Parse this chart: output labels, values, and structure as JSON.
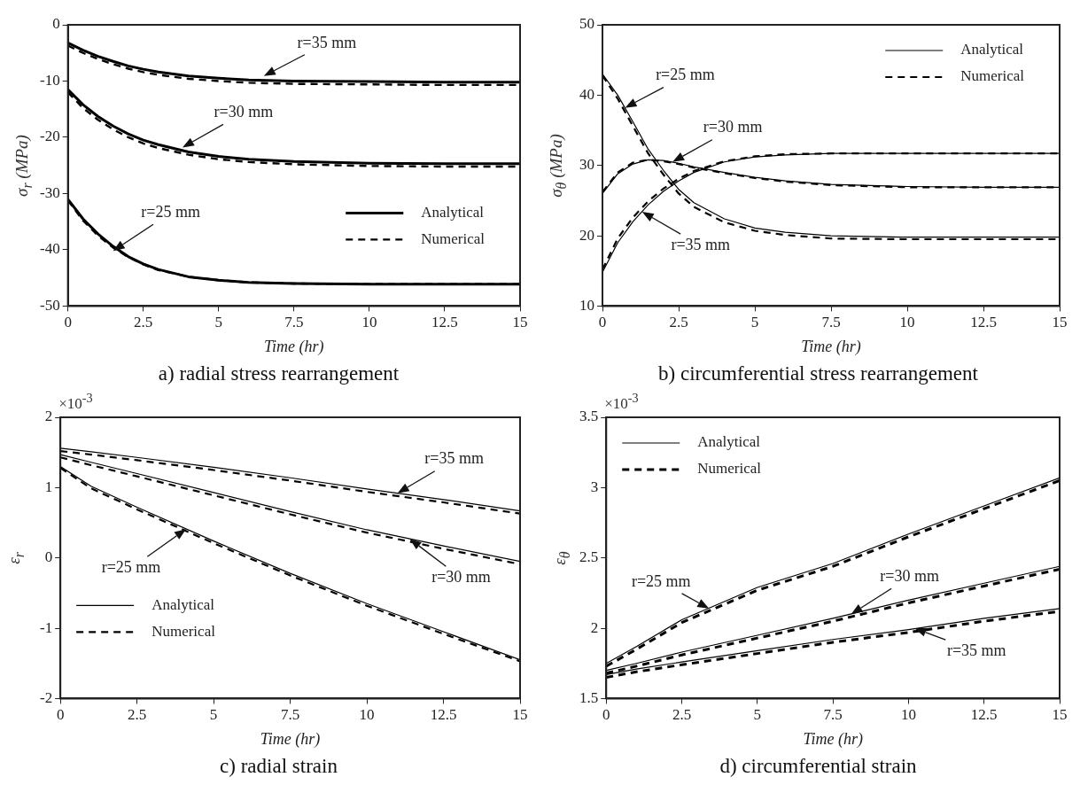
{
  "chart_data": [
    {
      "type": "line",
      "title": "a) radial stress rearrangement",
      "xlabel": "Time (hr)",
      "ylabel": "σ$_{r}$ (MPa)",
      "x": [
        0,
        0.5,
        1,
        1.5,
        2,
        2.5,
        3,
        4,
        5,
        6,
        7.5,
        10,
        12.5,
        15
      ],
      "xlim": [
        0,
        15
      ],
      "xticks": [
        0,
        2.5,
        5,
        7.5,
        10,
        12.5,
        15
      ],
      "ylim": [
        -50,
        0
      ],
      "yticks": [
        -50,
        -40,
        -30,
        -20,
        -10,
        0
      ],
      "grid": false,
      "marker": "none",
      "legend": "bottom right",
      "series": [
        {
          "name": "Analytical",
          "color": "#000000",
          "line_style": "solid",
          "values": [
            -31,
            -34.5,
            -37.2,
            -39.4,
            -41.2,
            -42.5,
            -43.5,
            -44.8,
            -45.4,
            -45.8,
            -46.0,
            -46.1,
            -46.1,
            -46.1
          ]
        },
        {
          "name": "Numerical",
          "color": "#000000",
          "line_style": "dashed",
          "values": [
            -31.2,
            -34.8,
            -37.5,
            -39.6,
            -41.3,
            -42.6,
            -43.6,
            -44.8,
            -45.4,
            -45.8,
            -46.0,
            -46.1,
            -46.1,
            -46.1
          ]
        },
        {
          "color": "#000000",
          "line_style": "solid",
          "values": [
            -11.5,
            -14.2,
            -16.3,
            -18.0,
            -19.4,
            -20.5,
            -21.3,
            -22.6,
            -23.4,
            -23.9,
            -24.3,
            -24.6,
            -24.7,
            -24.7
          ]
        },
        {
          "color": "#000000",
          "line_style": "dashed",
          "values": [
            -12.0,
            -14.8,
            -16.9,
            -18.6,
            -20.0,
            -21.1,
            -21.9,
            -23.1,
            -23.9,
            -24.4,
            -24.8,
            -25.1,
            -25.2,
            -25.2
          ]
        },
        {
          "color": "#000000",
          "line_style": "solid",
          "values": [
            -3.2,
            -4.5,
            -5.6,
            -6.5,
            -7.3,
            -7.9,
            -8.4,
            -9.1,
            -9.5,
            -9.8,
            -10.0,
            -10.1,
            -10.2,
            -10.2
          ]
        },
        {
          "color": "#000000",
          "line_style": "dashed",
          "values": [
            -3.7,
            -5.0,
            -6.1,
            -7.0,
            -7.8,
            -8.4,
            -8.9,
            -9.6,
            -10.0,
            -10.3,
            -10.5,
            -10.6,
            -10.7,
            -10.7
          ]
        }
      ],
      "annotations": [
        {
          "text": "r=35 mm",
          "x": 6.5,
          "y": -9.1
        },
        {
          "text": "r=30 mm",
          "x": 3.8,
          "y": -21.8
        },
        {
          "text": "r=25 mm",
          "x": 1.5,
          "y": -40.2
        }
      ]
    },
    {
      "type": "line",
      "title": "b) circumferential stress rearrangement",
      "xlabel": "Time (hr)",
      "ylabel": "σ$_{θ}$ (MPa)",
      "x": [
        0,
        0.5,
        1,
        1.5,
        2,
        2.5,
        3,
        4,
        5,
        6,
        7.5,
        10,
        12.5,
        15
      ],
      "xlim": [
        0,
        15
      ],
      "xticks": [
        0,
        2.5,
        5,
        7.5,
        10,
        12.5,
        15
      ],
      "ylim": [
        10,
        50
      ],
      "yticks": [
        10,
        20,
        30,
        40,
        50
      ],
      "grid": false,
      "marker": "none",
      "legend": "top right",
      "series": [
        {
          "name": "Analytical",
          "color": "#000000",
          "line_style": "solid",
          "values": [
            43,
            40.0,
            36.2,
            32.3,
            29.3,
            26.6,
            24.7,
            22.4,
            21.1,
            20.5,
            20.0,
            19.8,
            19.8,
            19.8
          ]
        },
        {
          "name": "Numerical",
          "color": "#000000",
          "line_style": "dashed",
          "values": [
            42.8,
            39.5,
            35.6,
            31.7,
            28.7,
            26.0,
            24.1,
            21.9,
            20.7,
            20.1,
            19.6,
            19.5,
            19.5,
            19.5
          ]
        },
        {
          "color": "#000000",
          "line_style": "solid",
          "values": [
            26.0,
            28.8,
            30.2,
            30.8,
            30.7,
            30.3,
            29.8,
            29.0,
            28.3,
            27.8,
            27.3,
            27.0,
            26.9,
            26.9
          ]
        },
        {
          "color": "#000000",
          "line_style": "dashed",
          "values": [
            26.2,
            29.0,
            30.4,
            30.8,
            30.6,
            30.2,
            29.7,
            28.9,
            28.2,
            27.7,
            27.2,
            26.9,
            26.9,
            26.9
          ]
        },
        {
          "color": "#000000",
          "line_style": "solid",
          "values": [
            14.8,
            19.0,
            22.0,
            24.4,
            26.3,
            27.8,
            29.0,
            30.5,
            31.2,
            31.5,
            31.7,
            31.7,
            31.7,
            31.7
          ]
        },
        {
          "color": "#000000",
          "line_style": "dashed",
          "values": [
            15.2,
            19.6,
            22.6,
            24.9,
            26.7,
            28.1,
            29.2,
            30.6,
            31.3,
            31.6,
            31.7,
            31.7,
            31.7,
            31.7
          ]
        }
      ],
      "annotations": [
        {
          "text": "r=25 mm",
          "x": 0.74,
          "y": 38.2
        },
        {
          "text": "r=30 mm",
          "x": 2.3,
          "y": 30.5
        },
        {
          "text": "r=35 mm",
          "x": 1.3,
          "y": 23.4
        }
      ]
    },
    {
      "type": "line",
      "title": "c) radial strain",
      "xlabel": "Time (hr)",
      "ylabel": "ε$_{r}$",
      "x": [
        0,
        1,
        2.5,
        5,
        7.5,
        10,
        12.5,
        15
      ],
      "xlim": [
        0,
        15
      ],
      "xticks": [
        0,
        2.5,
        5,
        7.5,
        10,
        12.5,
        15
      ],
      "ylim": [
        -2,
        2
      ],
      "yticks": [
        -2,
        -1,
        0,
        1,
        2
      ],
      "grid": false,
      "marker": "none",
      "legend": "bottom left",
      "series": [
        {
          "name": "Analytical",
          "color": "#000000",
          "line_style": "solid",
          "values": [
            1.3,
            1.02,
            0.72,
            0.24,
            -0.22,
            -0.65,
            -1.05,
            -1.45
          ]
        },
        {
          "name": "Numerical",
          "color": "#000000",
          "line_style": "dashed",
          "values": [
            1.28,
            0.99,
            0.69,
            0.21,
            -0.25,
            -0.68,
            -1.08,
            -1.47
          ]
        },
        {
          "color": "#000000",
          "line_style": "solid",
          "values": [
            1.47,
            1.36,
            1.2,
            0.93,
            0.66,
            0.4,
            0.17,
            -0.05
          ]
        },
        {
          "color": "#000000",
          "line_style": "dashed",
          "values": [
            1.43,
            1.32,
            1.16,
            0.89,
            0.62,
            0.36,
            0.13,
            -0.09
          ]
        },
        {
          "color": "#000000",
          "line_style": "solid",
          "values": [
            1.56,
            1.51,
            1.43,
            1.29,
            1.14,
            0.98,
            0.83,
            0.67
          ]
        },
        {
          "color": "#000000",
          "line_style": "dashed",
          "values": [
            1.52,
            1.47,
            1.39,
            1.25,
            1.1,
            0.94,
            0.79,
            0.63
          ]
        }
      ],
      "annotations": [
        "×10$^{-3}$",
        {
          "text": "r=35 mm",
          "x": 11.0,
          "y": 0.92
        },
        {
          "text": "r=30 mm",
          "x": 11.4,
          "y": 0.27
        },
        {
          "text": "r=25 mm",
          "x": 4.1,
          "y": 0.41
        }
      ]
    },
    {
      "type": "line",
      "title": "d) circumferential strain",
      "xlabel": "Time (hr)",
      "ylabel": "ε$_{θ}$",
      "x": [
        0,
        1,
        2.5,
        5,
        7.5,
        10,
        12.5,
        15
      ],
      "xlim": [
        0,
        15
      ],
      "xticks": [
        0,
        2.5,
        5,
        7.5,
        10,
        12.5,
        15
      ],
      "ylim": [
        1.5,
        3.5
      ],
      "yticks": [
        1.5,
        2,
        2.5,
        3,
        3.5
      ],
      "grid": false,
      "marker": "none",
      "legend": "top left",
      "series": [
        {
          "name": "Analytical",
          "color": "#000000",
          "line_style": "solid",
          "values": [
            1.75,
            1.87,
            2.06,
            2.29,
            2.46,
            2.67,
            2.87,
            3.07
          ]
        },
        {
          "name": "Numerical",
          "color": "#000000",
          "line_style": "dashed",
          "values": [
            1.73,
            1.85,
            2.04,
            2.27,
            2.44,
            2.65,
            2.85,
            3.05
          ]
        },
        {
          "color": "#000000",
          "line_style": "solid",
          "values": [
            1.7,
            1.75,
            1.83,
            1.95,
            2.07,
            2.2,
            2.32,
            2.44
          ]
        },
        {
          "color": "#000000",
          "line_style": "dashed",
          "values": [
            1.68,
            1.73,
            1.81,
            1.93,
            2.05,
            2.18,
            2.3,
            2.42
          ]
        },
        {
          "color": "#000000",
          "line_style": "solid",
          "values": [
            1.67,
            1.71,
            1.76,
            1.84,
            1.92,
            1.99,
            2.07,
            2.14
          ]
        },
        {
          "color": "#000000",
          "line_style": "dashed",
          "values": [
            1.65,
            1.69,
            1.74,
            1.82,
            1.9,
            1.97,
            2.05,
            2.12
          ]
        }
      ],
      "annotations": [
        "×10$^{-3}$",
        {
          "text": "r=25 mm",
          "x": 3.4,
          "y": 2.14
        },
        {
          "text": "r=30 mm",
          "x": 8.1,
          "y": 2.1
        },
        {
          "text": "r=35 mm",
          "x": 10.2,
          "y": 2.0
        }
      ]
    }
  ]
}
